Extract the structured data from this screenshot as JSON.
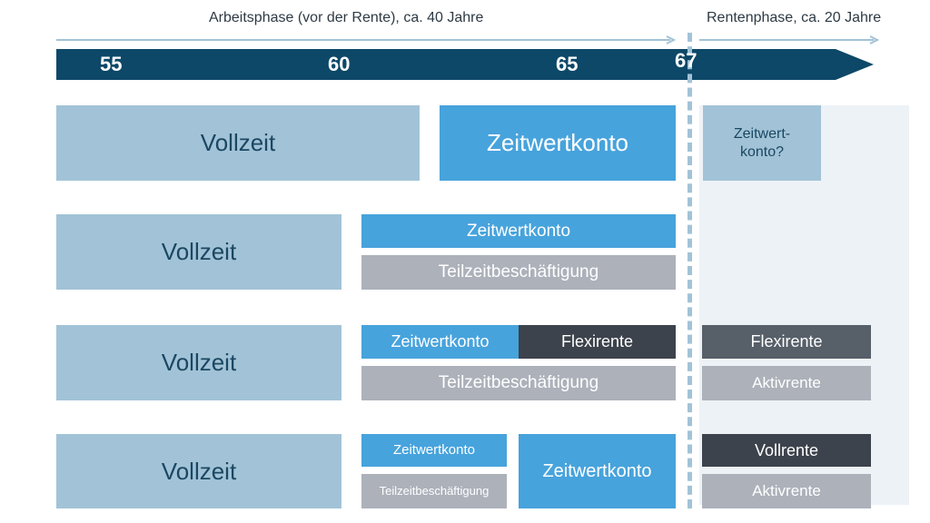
{
  "header": {
    "work_phase": "Arbeitsphase (vor der Rente), ca. 40 Jahre",
    "retirement_phase": "Rentenphase, ca. 20 Jahre"
  },
  "timeline": {
    "ages": [
      "55",
      "60",
      "65",
      "67"
    ]
  },
  "rows": [
    {
      "vollzeit": "Vollzeit",
      "zeitwertkonto": "Zeitwertkonto",
      "retirement_line1": "Zeitwert-",
      "retirement_line2": "konto?"
    },
    {
      "vollzeit": "Vollzeit",
      "zeitwertkonto": "Zeitwertkonto",
      "teilzeit": "Teilzeitbeschäftigung"
    },
    {
      "vollzeit": "Vollzeit",
      "zeitwertkonto": "Zeitwertkonto",
      "flexirente": "Flexirente",
      "teilzeit": "Teilzeitbeschäftigung",
      "retirement_flexirente": "Flexirente",
      "retirement_aktivrente": "Aktivrente"
    },
    {
      "vollzeit": "Vollzeit",
      "zeitwertkonto_small": "Zeitwertkonto",
      "teilzeit": "Teilzeitbeschäftigung",
      "zeitwertkonto": "Zeitwertkonto",
      "retirement_vollrente": "Vollrente",
      "retirement_aktivrente": "Aktivrente"
    }
  ],
  "colors": {
    "timeline": "#0d4868",
    "arrows": "#a2c3d7",
    "light_blue": "#a2c3d7",
    "blue": "#47a3dc",
    "gray": "#acb1ba",
    "dark": "#3d434c",
    "retirement_bg": "#edf2f7"
  }
}
